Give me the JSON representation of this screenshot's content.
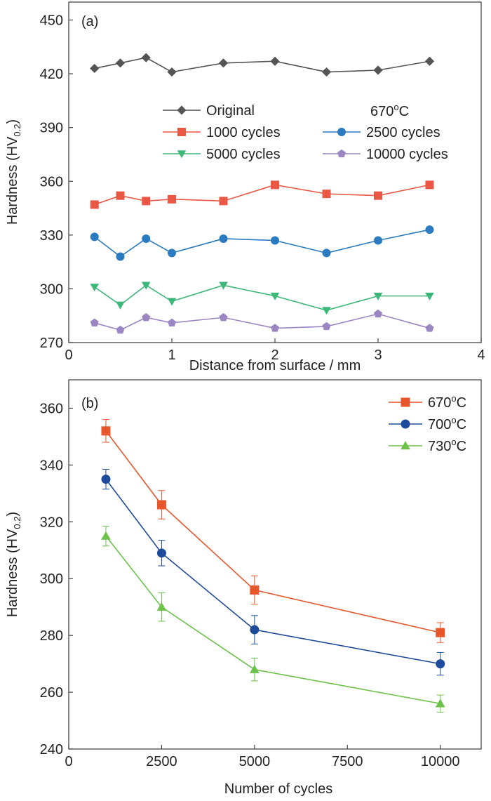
{
  "chart_data": [
    {
      "type": "line",
      "panel_label": "(a)",
      "xlabel": "Distance from surface / mm",
      "ylabel_main": "Hardness (HV",
      "ylabel_sub": "0.2",
      "ylabel_close": ")",
      "xlim": [
        0,
        4
      ],
      "ylim": [
        270,
        460
      ],
      "xticks": [
        0,
        1,
        2,
        3,
        4
      ],
      "yticks": [
        270,
        300,
        330,
        360,
        390,
        420,
        450
      ],
      "grid": false,
      "legend_placement": "center",
      "annotation_main": "670",
      "annotation_sup": "o",
      "annotation_tail": "C",
      "x": [
        0.25,
        0.5,
        0.75,
        1.0,
        1.5,
        2.0,
        2.5,
        3.0,
        3.5
      ],
      "series": [
        {
          "name": "Original",
          "color": "#555555",
          "marker": "diamond",
          "values": [
            423,
            426,
            429,
            421,
            426,
            427,
            421,
            422,
            427
          ]
        },
        {
          "name": "1000 cycles",
          "color": "#ea5744",
          "marker": "square",
          "values": [
            347,
            352,
            349,
            350,
            349,
            358,
            353,
            352,
            358
          ]
        },
        {
          "name": "2500 cycles",
          "color": "#2a7bbf",
          "marker": "circle",
          "values": [
            329,
            318,
            328,
            320,
            328,
            327,
            320,
            327,
            333
          ]
        },
        {
          "name": "5000 cycles",
          "color": "#3cb878",
          "marker": "triangle-down",
          "values": [
            301,
            291,
            302,
            293,
            302,
            296,
            288,
            296,
            296
          ]
        },
        {
          "name": "10000 cycles",
          "color": "#9b86c4",
          "marker": "pentagon",
          "values": [
            281,
            277,
            284,
            281,
            284,
            278,
            279,
            286,
            278
          ]
        }
      ]
    },
    {
      "type": "line",
      "panel_label": "(b)",
      "xlabel": "Number of cycles",
      "ylabel_main": "Hardness (HV",
      "ylabel_sub": "0.2",
      "ylabel_close": ")",
      "xlim": [
        0,
        11100
      ],
      "ylim": [
        240,
        370
      ],
      "xticks": [
        0,
        2500,
        5000,
        7500,
        10000
      ],
      "yticks": [
        240,
        260,
        280,
        300,
        320,
        340,
        360
      ],
      "grid": false,
      "legend_placement": "top-right",
      "x": [
        1000,
        2500,
        5000,
        10000
      ],
      "series": [
        {
          "name_main": "670",
          "name_sup": "o",
          "name_tail": "C",
          "color": "#e8562b",
          "marker": "square",
          "values": [
            352,
            326,
            296,
            281
          ],
          "errors": [
            4,
            5,
            5,
            3.5
          ]
        },
        {
          "name_main": "700",
          "name_sup": "o",
          "name_tail": "C",
          "color": "#1e4b9b",
          "marker": "circle",
          "values": [
            335,
            309,
            282,
            270
          ],
          "errors": [
            3.5,
            4.5,
            5,
            4
          ]
        },
        {
          "name_main": "730",
          "name_sup": "o",
          "name_tail": "C",
          "color": "#6cc24a",
          "marker": "triangle-up",
          "values": [
            315,
            290,
            268,
            256
          ],
          "errors": [
            3.5,
            5,
            4,
            3
          ]
        }
      ]
    }
  ]
}
